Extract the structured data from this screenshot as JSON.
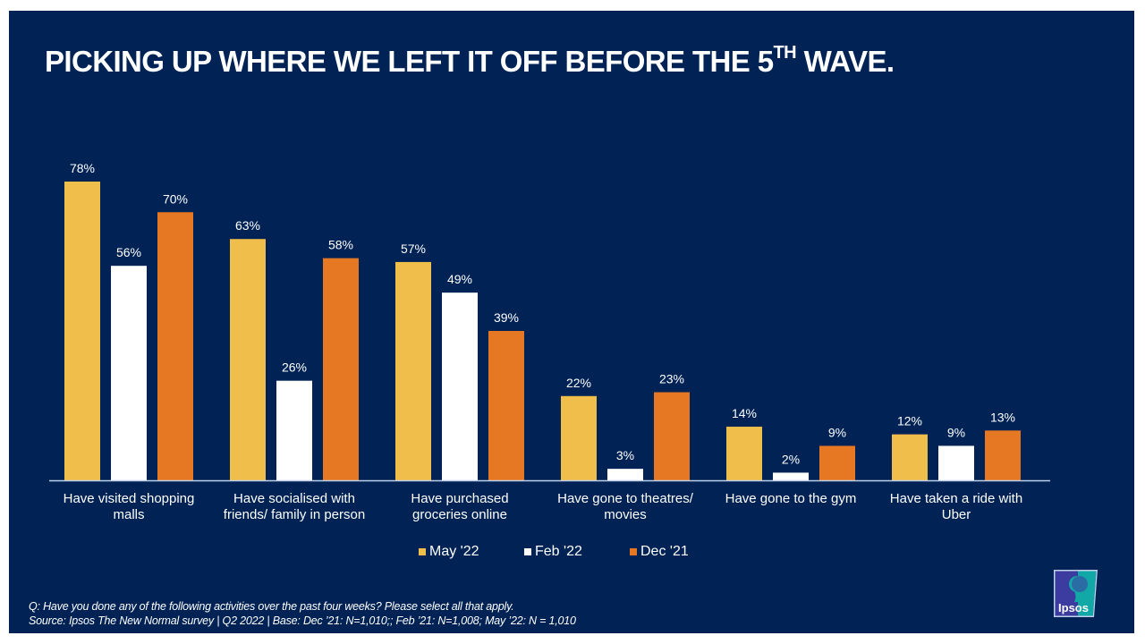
{
  "title": {
    "main": "PICKING UP WHERE WE LEFT IT OFF BEFORE THE 5",
    "sup": "TH",
    "tail": " WAVE."
  },
  "chart_data": {
    "type": "bar",
    "title": "PICKING UP WHERE WE LEFT IT OFF BEFORE THE 5TH WAVE.",
    "xlabel": "",
    "ylabel": "",
    "ylim": [
      0,
      80
    ],
    "grid": false,
    "legend_position": "bottom",
    "categories": [
      [
        "Have visited shopping",
        "malls"
      ],
      [
        "Have socialised with",
        "friends/ family in person"
      ],
      [
        "Have purchased",
        "groceries online"
      ],
      [
        "Have gone to theatres/",
        "movies"
      ],
      [
        "Have gone to the gym"
      ],
      [
        "Have taken a ride with",
        "Uber"
      ]
    ],
    "series": [
      {
        "name": "May '22",
        "color": "#F0BE4B",
        "values": [
          78,
          63,
          57,
          22,
          14,
          12
        ]
      },
      {
        "name": "Feb '22",
        "color": "#FFFFFF",
        "values": [
          56,
          26,
          49,
          3,
          2,
          9
        ]
      },
      {
        "name": "Dec '21",
        "color": "#E67823",
        "values": [
          70,
          58,
          39,
          23,
          9,
          13
        ]
      }
    ],
    "value_suffix": "%"
  },
  "footnote": {
    "question": "Q: Have you done any of the following activities over the past four weeks? Please select all that apply.",
    "source": "Source: Ipsos The New Normal  survey | Q2 2022 | Base: Dec ’21: N=1,010;; Feb ’21: N=1,008; May  ’22: N = 1,010"
  },
  "logo": {
    "text": "Ipsos"
  },
  "colors": {
    "background": "#002255",
    "axis": "#BFD0E8"
  }
}
